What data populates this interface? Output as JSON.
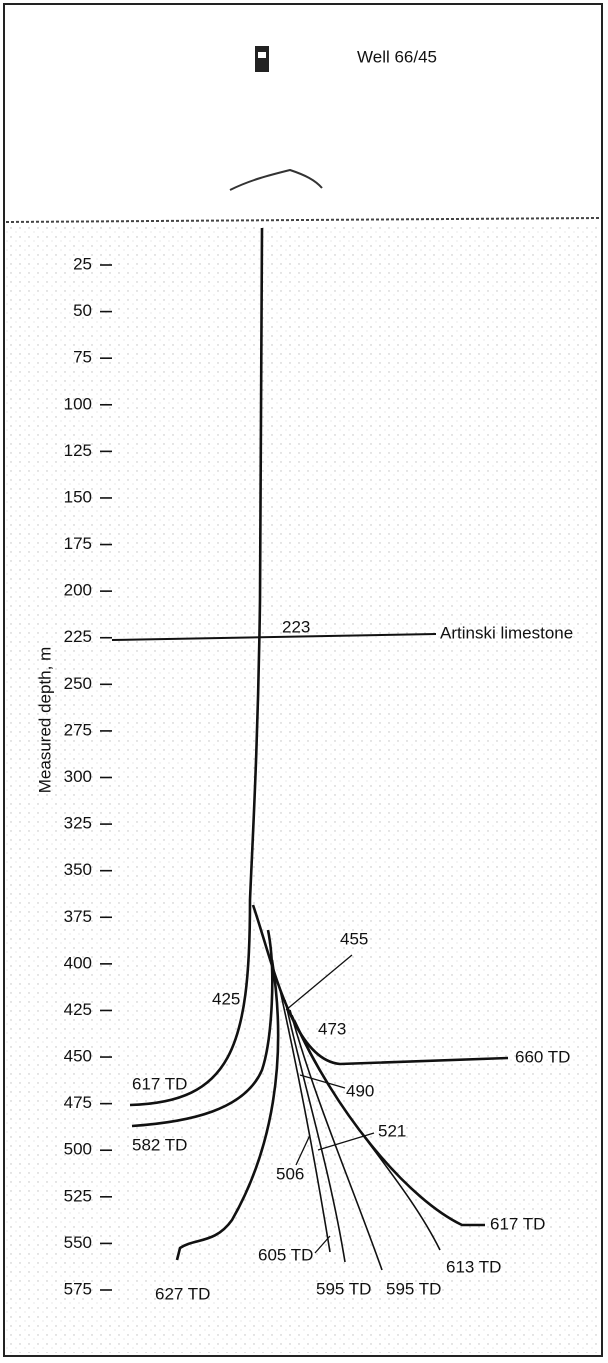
{
  "title": "Well 66/45",
  "y_axis_label": "Measured depth, m",
  "depth_ticks": [
    25,
    50,
    75,
    100,
    125,
    150,
    175,
    200,
    225,
    250,
    275,
    300,
    325,
    350,
    375,
    400,
    425,
    450,
    475,
    500,
    525,
    550,
    575
  ],
  "annotations": {
    "top": "223",
    "formation": "Artinski limestone",
    "a425": "425",
    "a455": "455",
    "a473": "473",
    "a490": "490",
    "a521": "521",
    "a506": "506",
    "td660": "660 TD",
    "td617a": "617 TD",
    "td582": "582 TD",
    "td627": "627 TD",
    "td605": "605 TD",
    "td595a": "595 TD",
    "td595b": "595 TD",
    "td613": "613 TD",
    "td617b": "617 TD"
  }
}
